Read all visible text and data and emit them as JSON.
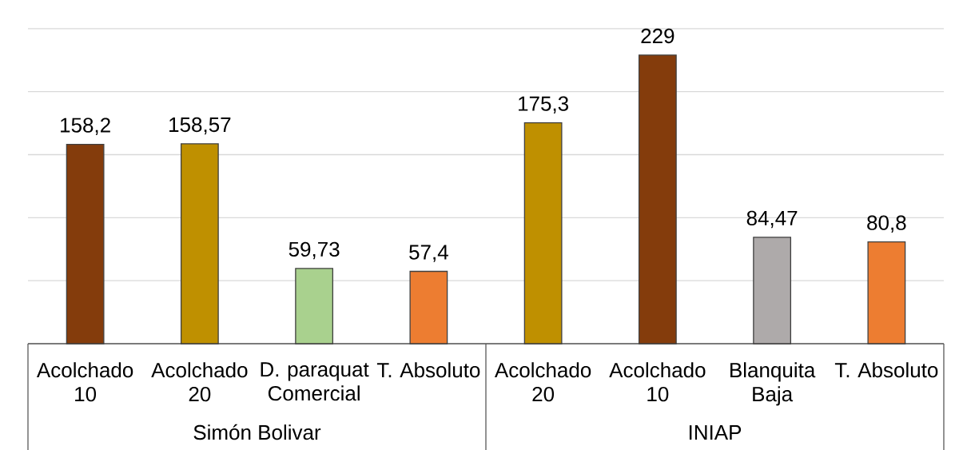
{
  "chart_data": {
    "type": "bar",
    "categories": [
      "Acolchado 10",
      "Acolchado 20",
      "D. paraquat Comercial",
      "T. Absoluto",
      "Acolchado 20",
      "Acolchado 10",
      "Blanquita Baja",
      "T. Absoluto"
    ],
    "values": [
      158.2,
      158.57,
      59.73,
      57.4,
      175.3,
      229,
      84.47,
      80.8
    ],
    "value_labels": [
      "158,2",
      "158,57",
      "59,73",
      "57,4",
      "175,3",
      "229",
      "84,47",
      "80,8"
    ],
    "colors": [
      "#843c0c",
      "#bf9000",
      "#a9d18e",
      "#ed7d31",
      "#bf9000",
      "#843c0c",
      "#aeaaaa",
      "#ed7d31"
    ],
    "ylim": [
      0,
      250
    ],
    "yticks": [
      {
        "value": 0,
        "label": null
      },
      {
        "value": 50,
        "label": null
      },
      {
        "value": 100,
        "label": null
      },
      {
        "value": 150,
        "label": null
      },
      {
        "value": 200,
        "label": null
      },
      {
        "value": 250,
        "label": null
      }
    ],
    "grid": "y",
    "tick_labels": "x",
    "annotations": [
      "Simón Bolivar",
      "INIAP"
    ]
  }
}
